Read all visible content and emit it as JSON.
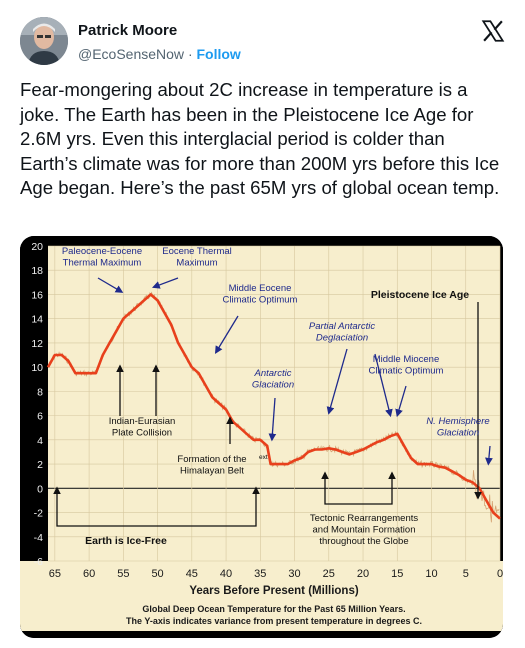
{
  "author": {
    "name": "Patrick Moore",
    "handle": "@EcoSenseNow",
    "separator": "·",
    "follow_label": "Follow",
    "avatar_icon": "avatar-photo",
    "platform_icon": "x-logo-icon"
  },
  "tweet": {
    "text": "Fear-mongering about 2C increase in temperature is a joke. The Earth has been in the Pleistocene Ice Age for 2.6M yrs. Even this interglacial period is colder than Earth’s climate was for more than 200M yrs before this Ice Age began. Here’s the past 65M yrs of global ocean temp."
  },
  "chart_data": {
    "type": "line",
    "title": "",
    "xlabel": "Years Before Present (Millions)",
    "ylabel": "",
    "xlim": [
      66,
      0
    ],
    "ylim": [
      -6,
      20
    ],
    "x_ticks": [
      65,
      60,
      55,
      50,
      45,
      40,
      35,
      30,
      25,
      20,
      15,
      10,
      5,
      0
    ],
    "y_ticks": [
      20,
      18,
      16,
      14,
      12,
      10,
      8,
      6,
      4,
      2,
      0,
      -2,
      -4,
      -6
    ],
    "background": "#f7eecd",
    "series": [
      {
        "color": "#e8401c",
        "x": [
          66,
          65,
          64,
          63,
          62,
          61,
          60,
          59,
          58,
          57,
          56,
          55,
          54,
          53,
          52,
          51,
          50,
          49,
          48,
          47,
          46,
          45,
          44,
          43,
          42,
          41,
          40,
          39,
          38,
          37,
          36,
          35,
          34,
          33.5,
          33,
          32,
          31,
          30,
          29,
          28,
          27,
          26,
          25,
          24,
          23,
          22,
          21,
          20,
          19,
          18,
          17,
          16,
          15,
          14,
          13,
          12,
          11,
          10,
          9,
          8,
          7,
          6,
          5,
          4,
          3,
          2,
          1,
          0
        ],
        "y": [
          10,
          11,
          11,
          10.5,
          9.5,
          9.5,
          9.5,
          9.5,
          11,
          12,
          13,
          14,
          14.5,
          15,
          15.5,
          16,
          15.5,
          14.5,
          13.5,
          12,
          11,
          10,
          9.5,
          8.5,
          7.5,
          7,
          6.5,
          5.5,
          5,
          4.5,
          4,
          4,
          3.5,
          2,
          2,
          2,
          2,
          2.3,
          2.5,
          3,
          3.2,
          3.2,
          3.3,
          3.2,
          3,
          2.8,
          3,
          3.2,
          3.5,
          3.8,
          4,
          4.3,
          4.5,
          3.5,
          2.5,
          2,
          2,
          2,
          1.8,
          1.7,
          1.4,
          1.1,
          0.7,
          0.5,
          0,
          -1,
          -2,
          -2.5
        ]
      }
    ],
    "annotations": [
      {
        "lines": [
          "Paleocene-Eocene",
          "Thermal Maximum"
        ]
      },
      {
        "lines": [
          "Eocene Thermal",
          "Maximum"
        ]
      },
      {
        "lines": [
          "Middle Eocene",
          "Climatic Optimum"
        ]
      },
      {
        "lines": [
          "Pleistocene Ice Age"
        ]
      },
      {
        "lines": [
          "Partial Antarctic",
          "Deglaciation"
        ]
      },
      {
        "lines": [
          "Middle Miocene",
          "Climatic Optimum"
        ]
      },
      {
        "lines": [
          "Antarctic",
          "Glaciation"
        ]
      },
      {
        "lines": [
          "N. Hemisphere",
          "Glaciation"
        ]
      },
      {
        "lines": [
          "Indian-Eurasian",
          "Plate Collision"
        ]
      },
      {
        "lines": [
          "Formation of the",
          "Himalayan Belt"
        ]
      },
      {
        "lines": [
          "Tectonic Rearrangements",
          "and Mountain Formation",
          "throughout the Globe"
        ]
      },
      {
        "lines": [
          "Earth is Ice-Free"
        ]
      },
      {
        "lines": [
          "ext"
        ]
      }
    ],
    "caption": [
      "Global Deep Ocean Temperature for the Past 65 Million Years.",
      "The Y-axis indicates variance from present temperature in degrees C."
    ]
  }
}
